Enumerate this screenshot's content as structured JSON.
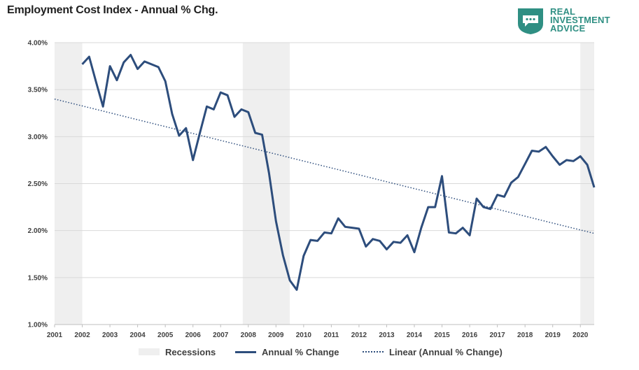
{
  "title": "Employment Cost Index - Annual % Chg.",
  "logo": {
    "line1": "REAL",
    "line2": "INVESTMENT",
    "line3": "ADVICE",
    "color": "#2f8f83"
  },
  "legend": {
    "recessions": "Recessions",
    "annual": "Annual % Change",
    "linear": "Linear (Annual % Change)"
  },
  "colors": {
    "line": "#2d4d7c",
    "recession": "#efefef",
    "grid": "#d9d9d9"
  },
  "chart_data": {
    "type": "line",
    "title": "Employment Cost Index - Annual % Chg.",
    "xlabel": "",
    "ylabel": "",
    "xlim": [
      2001.0,
      2020.5
    ],
    "ylim": [
      1.0,
      4.0
    ],
    "y_ticks": [
      "1.00%",
      "1.50%",
      "2.00%",
      "2.50%",
      "3.00%",
      "3.50%",
      "4.00%"
    ],
    "y_tick_values": [
      1.0,
      1.5,
      2.0,
      2.5,
      3.0,
      3.5,
      4.0
    ],
    "x_ticks": [
      "2001",
      "2002",
      "2003",
      "2004",
      "2005",
      "2006",
      "2007",
      "2008",
      "2009",
      "2010",
      "2011",
      "2012",
      "2013",
      "2014",
      "2015",
      "2016",
      "2017",
      "2018",
      "2019",
      "2020"
    ],
    "grid": "horizontal",
    "legend_position": "bottom",
    "recessions": [
      [
        2001.0,
        2002.0
      ],
      [
        2007.8,
        2009.5
      ],
      [
        2020.0,
        2020.5
      ]
    ],
    "series": [
      {
        "name": "Annual % Change",
        "x": [
          2002.0,
          2002.25,
          2002.5,
          2002.75,
          2003.0,
          2003.25,
          2003.5,
          2003.75,
          2004.0,
          2004.25,
          2004.5,
          2004.75,
          2005.0,
          2005.25,
          2005.5,
          2005.75,
          2006.0,
          2006.25,
          2006.5,
          2006.75,
          2007.0,
          2007.25,
          2007.5,
          2007.75,
          2008.0,
          2008.25,
          2008.5,
          2008.75,
          2009.0,
          2009.25,
          2009.5,
          2009.75,
          2010.0,
          2010.25,
          2010.5,
          2010.75,
          2011.0,
          2011.25,
          2011.5,
          2011.75,
          2012.0,
          2012.25,
          2012.5,
          2012.75,
          2013.0,
          2013.25,
          2013.5,
          2013.75,
          2014.0,
          2014.25,
          2014.5,
          2014.75,
          2015.0,
          2015.25,
          2015.5,
          2015.75,
          2016.0,
          2016.25,
          2016.5,
          2016.75,
          2017.0,
          2017.25,
          2017.5,
          2017.75,
          2018.0,
          2018.25,
          2018.5,
          2018.75,
          2019.0,
          2019.25,
          2019.5,
          2019.75,
          2020.0,
          2020.25,
          2020.5
        ],
        "y": [
          3.77,
          3.85,
          3.58,
          3.32,
          3.75,
          3.6,
          3.79,
          3.87,
          3.72,
          3.8,
          3.77,
          3.74,
          3.59,
          3.24,
          3.01,
          3.09,
          2.75,
          3.04,
          3.32,
          3.29,
          3.47,
          3.44,
          3.21,
          3.29,
          3.26,
          3.04,
          3.02,
          2.61,
          2.1,
          1.74,
          1.47,
          1.37,
          1.73,
          1.9,
          1.89,
          1.98,
          1.97,
          2.13,
          2.04,
          2.03,
          2.02,
          1.83,
          1.91,
          1.89,
          1.8,
          1.88,
          1.87,
          1.95,
          1.77,
          2.03,
          2.25,
          2.25,
          2.58,
          1.98,
          1.97,
          2.03,
          1.95,
          2.34,
          2.25,
          2.23,
          2.38,
          2.36,
          2.51,
          2.57,
          2.71,
          2.85,
          2.84,
          2.89,
          2.79,
          2.7,
          2.75,
          2.74,
          2.79,
          2.7,
          2.46
        ]
      },
      {
        "name": "Linear (Annual % Change)",
        "style": "dotted",
        "x": [
          2001.0,
          2020.5
        ],
        "y": [
          3.4,
          1.97
        ]
      }
    ]
  }
}
